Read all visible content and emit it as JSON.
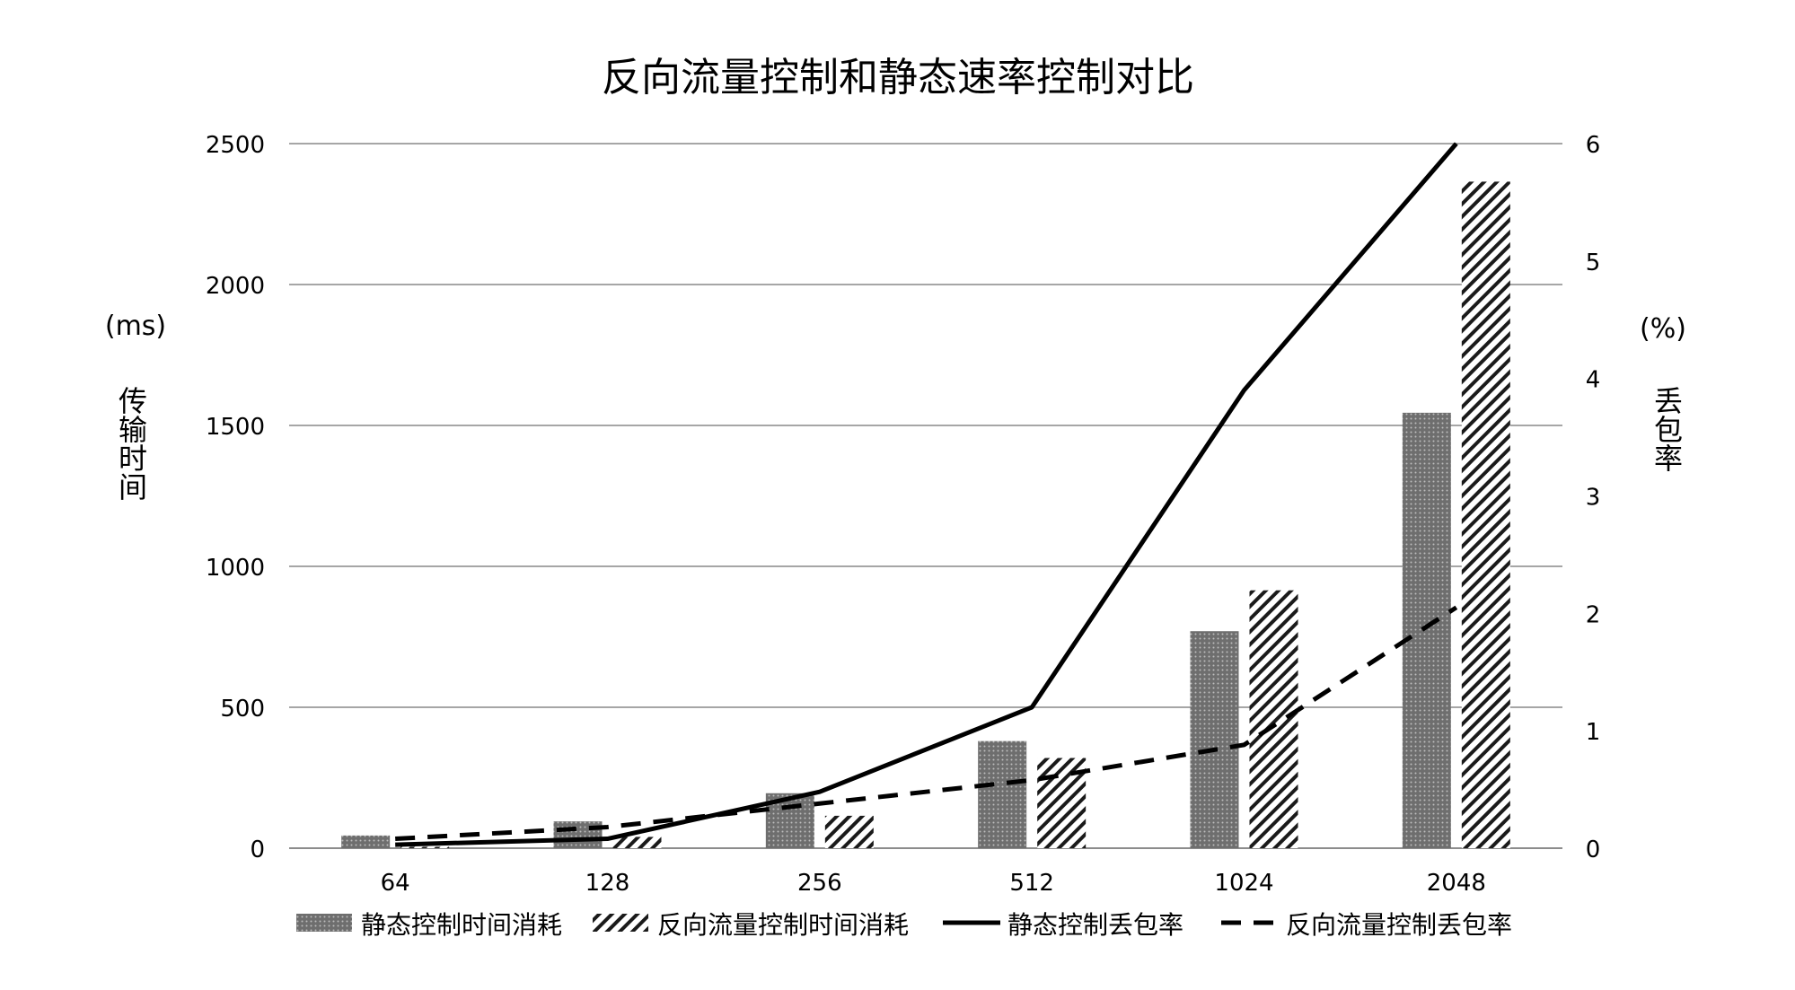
{
  "chart_data": {
    "type": "bar",
    "title": "反向流量控制和静态速率控制对比",
    "ylabel": "传输时间",
    "ylabel_unit": "(ms)",
    "y2label": "丢包率",
    "y2label_unit": "(%)",
    "categories": [
      "64",
      "128",
      "256",
      "512",
      "1024",
      "2048"
    ],
    "ylim": [
      0,
      2500
    ],
    "yticks": [
      0,
      500,
      1000,
      1500,
      2000,
      2500
    ],
    "y2lim": [
      0,
      6
    ],
    "y2ticks": [
      0,
      1,
      2,
      3,
      4,
      5,
      6
    ],
    "grid": true,
    "legend_position": "bottom",
    "bar_series": [
      {
        "name": "静态控制时间消耗",
        "values": [
          45,
          95,
          195,
          380,
          770,
          1545
        ],
        "pattern": "dots"
      },
      {
        "name": "反向流量控制时间消耗",
        "values": [
          5,
          40,
          115,
          320,
          915,
          2365
        ],
        "pattern": "hatch"
      }
    ],
    "line_series": [
      {
        "name": "静态控制丢包率",
        "values": [
          0.03,
          0.08,
          0.48,
          1.2,
          3.9,
          6.0
        ],
        "style": "solid",
        "axis": "right"
      },
      {
        "name": "反向流量控制丢包率",
        "values": [
          0.08,
          0.18,
          0.38,
          0.58,
          0.88,
          2.05
        ],
        "style": "dashed",
        "axis": "right"
      }
    ],
    "colors": {
      "bar_fill": "#7a7a7a",
      "line": "#000000",
      "grid": "#a6a6a6",
      "text": "#000000"
    }
  }
}
